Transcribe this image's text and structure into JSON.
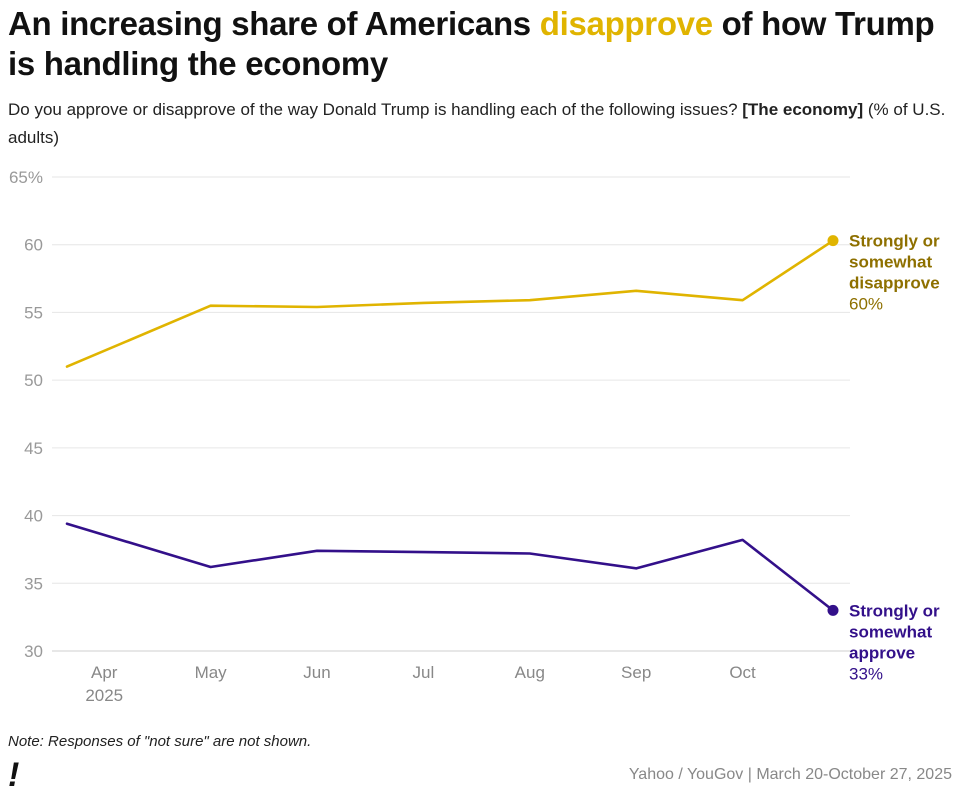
{
  "header": {
    "title_part1": "An increasing share of Americans ",
    "title_highlight": "disapprove",
    "title_part2": " of how Trump is handling the economy",
    "subtitle_text": "Do you approve or disapprove of the way Donald Trump is handling each of the following issues? ",
    "subtitle_bold": "[The economy]",
    "subtitle_suffix": " (% of U.S. adults)"
  },
  "chart_data": {
    "type": "line",
    "title": "An increasing share of Americans disapprove of how Trump is handling the economy",
    "xlabel": "",
    "ylabel": "% of U.S. adults",
    "ylim": [
      30,
      65
    ],
    "yticks": [
      30,
      35,
      40,
      45,
      50,
      55,
      60,
      65
    ],
    "ytick_labels": [
      "30",
      "35",
      "40",
      "45",
      "50",
      "55",
      "60",
      "65%"
    ],
    "x": [
      "Mar 20",
      "May 1",
      "Jun 1",
      "Jul 1",
      "Aug 1",
      "Sep 1",
      "Oct 1",
      "Oct 27"
    ],
    "x_positions": [
      0,
      1.35,
      2.35,
      3.35,
      4.35,
      5.35,
      6.35,
      7.2
    ],
    "x_ticks": [
      {
        "label": "Apr",
        "sub": "2025",
        "pos": 0.35
      },
      {
        "label": "May",
        "sub": "",
        "pos": 1.35
      },
      {
        "label": "Jun",
        "sub": "",
        "pos": 2.35
      },
      {
        "label": "Jul",
        "sub": "",
        "pos": 3.35
      },
      {
        "label": "Aug",
        "sub": "",
        "pos": 4.35
      },
      {
        "label": "Sep",
        "sub": "",
        "pos": 5.35
      },
      {
        "label": "Oct",
        "sub": "",
        "pos": 6.35
      }
    ],
    "series": [
      {
        "name": "Strongly or somewhat disapprove",
        "label_lines": [
          "Strongly or",
          "somewhat",
          "disapprove"
        ],
        "end_value_label": "60%",
        "color": "#e0b400",
        "label_color": "#8e7000",
        "values": [
          51.0,
          55.5,
          55.4,
          55.7,
          55.9,
          56.6,
          55.9,
          60.3
        ]
      },
      {
        "name": "Strongly or somewhat approve",
        "label_lines": [
          "Strongly or",
          "somewhat",
          "approve"
        ],
        "end_value_label": "33%",
        "color": "#33108a",
        "label_color": "#33108a",
        "values": [
          39.4,
          36.2,
          37.4,
          37.3,
          37.2,
          36.1,
          38.2,
          33.0
        ]
      }
    ]
  },
  "footer": {
    "note": "Note: Responses of \"not sure\" are not shown.",
    "logo": "!",
    "source": "Yahoo / YouGov | March 20-October 27, 2025"
  }
}
